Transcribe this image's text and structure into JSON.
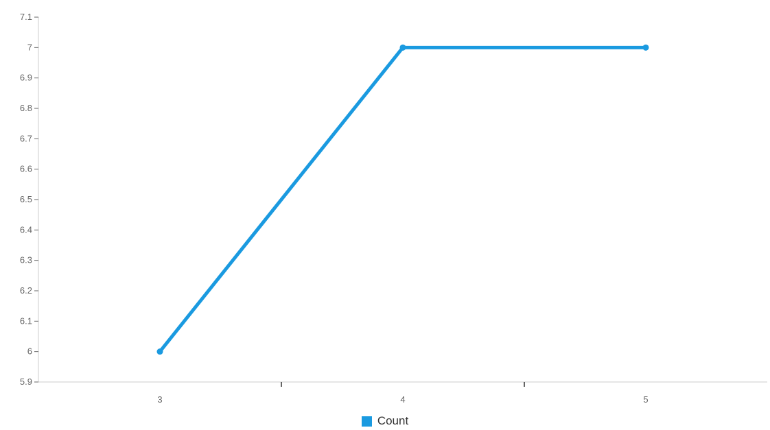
{
  "chart_data": {
    "type": "line",
    "x": [
      3,
      4,
      5
    ],
    "series": [
      {
        "name": "Count",
        "values": [
          6,
          7,
          7
        ],
        "color": "#1a9ae0"
      }
    ],
    "x_ticks": [
      "3",
      "4",
      "5"
    ],
    "y_ticks": [
      "5.9",
      "6",
      "6.1",
      "6.2",
      "6.3",
      "6.4",
      "6.5",
      "6.6",
      "6.7",
      "6.8",
      "6.9",
      "7",
      "7.1"
    ],
    "xlim": [
      2.5,
      5.5
    ],
    "ylim": [
      5.9,
      7.1
    ],
    "grid": false,
    "legend": "bottom-center"
  }
}
